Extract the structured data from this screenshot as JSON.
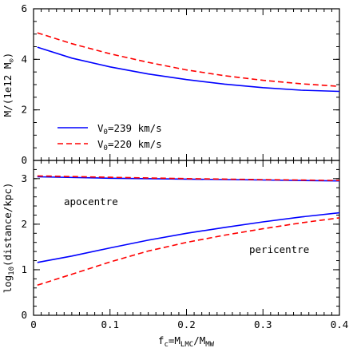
{
  "chart_data": [
    {
      "type": "line",
      "panel": "top",
      "ylabel_main": "M/(1e12 M",
      "ylabel_sub": "⊙",
      "ylabel_close": ")",
      "xlim": [
        0,
        0.4
      ],
      "ylim": [
        0,
        6
      ],
      "yticks": [
        0,
        2,
        4,
        6
      ],
      "grid": false,
      "legend_position": "bottom-left",
      "series": [
        {
          "name": "V_0=239 km/s",
          "legend_main": "V",
          "legend_sub": "0",
          "legend_rest": "=239 km/s",
          "color": "#0000ff",
          "dash": "solid",
          "x": [
            0.005,
            0.05,
            0.1,
            0.15,
            0.2,
            0.25,
            0.3,
            0.35,
            0.4
          ],
          "y": [
            4.48,
            4.05,
            3.7,
            3.42,
            3.2,
            3.02,
            2.88,
            2.78,
            2.73
          ]
        },
        {
          "name": "V_0=220 km/s",
          "legend_main": "V",
          "legend_sub": "0",
          "legend_rest": "=220 km/s",
          "color": "#ff0000",
          "dash": "dashed",
          "x": [
            0.005,
            0.05,
            0.1,
            0.15,
            0.2,
            0.25,
            0.3,
            0.35,
            0.4
          ],
          "y": [
            5.05,
            4.62,
            4.22,
            3.88,
            3.58,
            3.35,
            3.17,
            3.03,
            2.93
          ]
        }
      ]
    },
    {
      "type": "line",
      "panel": "bottom",
      "ylabel_main": "log",
      "ylabel_sub": "10",
      "ylabel_rest": "(distance/kpc)",
      "xlim": [
        0,
        0.4
      ],
      "ylim": [
        0,
        3.4
      ],
      "yticks": [
        0,
        1,
        2,
        3
      ],
      "xticks": [
        0,
        0.1,
        0.2,
        0.3,
        0.4
      ],
      "xticklabels": [
        "0",
        "0.1",
        "0.2",
        "0.3",
        "0.4"
      ],
      "xlabel_parts": [
        "f",
        "c",
        "=M",
        "LMC",
        "/M",
        "MW"
      ],
      "grid": false,
      "annotations": [
        "apocentre",
        "pericentre"
      ],
      "series": [
        {
          "name": "apocentre V_0=239 km/s",
          "color": "#0000ff",
          "dash": "solid",
          "x": [
            0.005,
            0.1,
            0.2,
            0.3,
            0.4
          ],
          "y": [
            3.04,
            3.01,
            2.99,
            2.97,
            2.95
          ]
        },
        {
          "name": "apocentre V_0=220 km/s",
          "color": "#ff0000",
          "dash": "dashed",
          "x": [
            0.005,
            0.1,
            0.2,
            0.3,
            0.4
          ],
          "y": [
            3.06,
            3.03,
            3.0,
            2.98,
            2.96
          ]
        },
        {
          "name": "pericentre V_0=239 km/s",
          "color": "#0000ff",
          "dash": "solid",
          "x": [
            0.005,
            0.05,
            0.1,
            0.15,
            0.2,
            0.25,
            0.3,
            0.35,
            0.4
          ],
          "y": [
            1.16,
            1.3,
            1.48,
            1.65,
            1.8,
            1.93,
            2.05,
            2.16,
            2.25
          ]
        },
        {
          "name": "pericentre V_0=220 km/s",
          "color": "#ff0000",
          "dash": "dashed",
          "x": [
            0.005,
            0.05,
            0.1,
            0.15,
            0.2,
            0.25,
            0.3,
            0.35,
            0.4
          ],
          "y": [
            0.66,
            0.9,
            1.17,
            1.41,
            1.6,
            1.76,
            1.9,
            2.03,
            2.14
          ]
        }
      ]
    }
  ]
}
